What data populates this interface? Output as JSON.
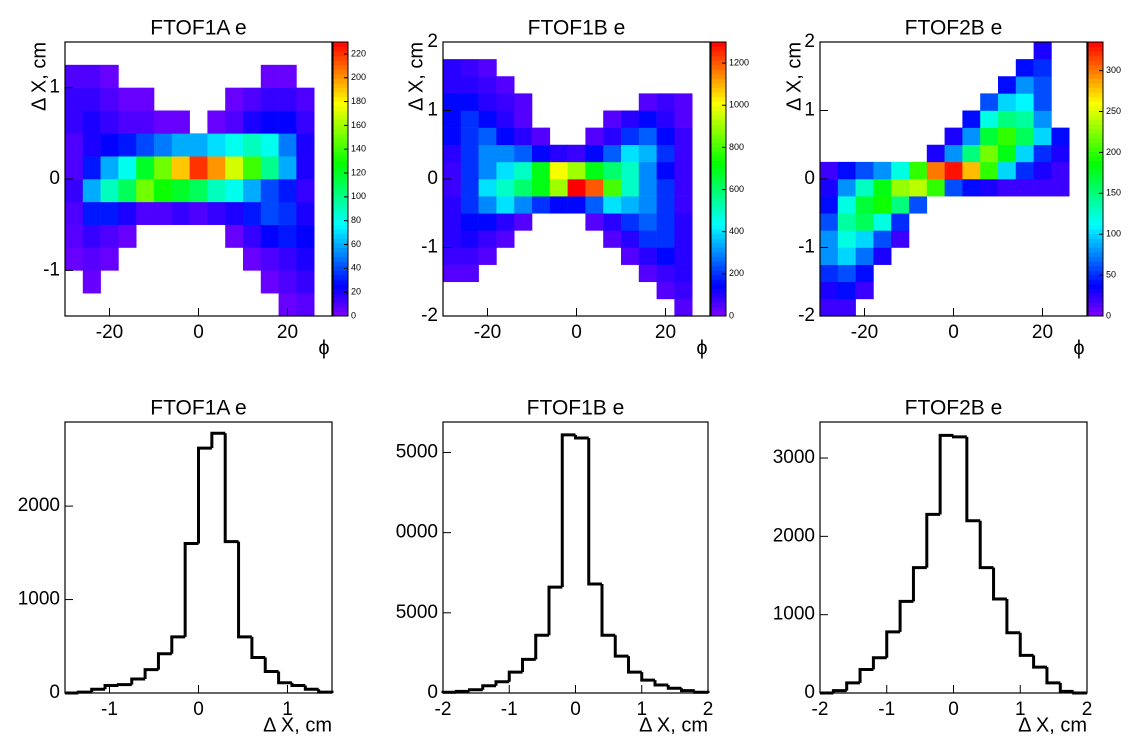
{
  "chart_data": [
    {
      "type": "heatmap",
      "title": "FTOF1A e",
      "x_label": "ϕ",
      "y_label": "Δ X, cm",
      "xlim": [
        -30,
        30
      ],
      "ylim": [
        -1.5,
        1.5
      ],
      "xticks": [
        -20,
        0,
        20
      ],
      "yticks": [
        -1,
        0,
        1
      ],
      "zlim": [
        0,
        230
      ],
      "zticks": [
        0,
        20,
        40,
        60,
        80,
        100,
        120,
        140,
        160,
        180,
        200,
        220
      ],
      "xbins": [
        -30,
        -26,
        -22,
        -18,
        -14,
        -10,
        -6,
        -2,
        2,
        6,
        10,
        14,
        18,
        22,
        26,
        30
      ],
      "ybins": [
        -1.5,
        -1.25,
        -1,
        -0.75,
        -0.5,
        -0.25,
        0,
        0.25,
        0.5,
        0.75,
        1,
        1.25,
        1.5
      ],
      "z": [
        [
          null,
          null,
          null,
          null,
          null,
          null,
          null,
          null,
          null,
          null,
          null,
          null,
          5,
          8,
          null
        ],
        [
          null,
          5,
          null,
          null,
          null,
          null,
          null,
          null,
          null,
          null,
          null,
          5,
          10,
          15,
          null
        ],
        [
          5,
          8,
          5,
          null,
          null,
          null,
          null,
          null,
          null,
          null,
          5,
          10,
          15,
          20,
          null
        ],
        [
          8,
          15,
          10,
          5,
          null,
          null,
          null,
          null,
          null,
          5,
          15,
          25,
          30,
          25,
          null
        ],
        [
          10,
          30,
          30,
          20,
          10,
          10,
          15,
          10,
          15,
          20,
          30,
          40,
          35,
          20,
          null
        ],
        [
          15,
          60,
          90,
          110,
          150,
          130,
          120,
          110,
          90,
          80,
          60,
          40,
          30,
          15,
          null
        ],
        [
          10,
          30,
          60,
          80,
          120,
          150,
          190,
          220,
          200,
          170,
          140,
          100,
          60,
          20,
          null
        ],
        [
          10,
          20,
          25,
          30,
          40,
          50,
          60,
          60,
          70,
          80,
          90,
          80,
          50,
          20,
          null
        ],
        [
          15,
          20,
          15,
          10,
          10,
          5,
          5,
          null,
          5,
          10,
          20,
          25,
          25,
          15,
          null
        ],
        [
          15,
          15,
          10,
          5,
          5,
          null,
          null,
          null,
          null,
          5,
          10,
          15,
          15,
          10,
          null
        ],
        [
          10,
          10,
          5,
          null,
          null,
          null,
          null,
          null,
          null,
          null,
          null,
          5,
          5,
          null,
          null
        ],
        [
          null,
          null,
          null,
          null,
          null,
          null,
          null,
          null,
          null,
          null,
          null,
          null,
          null,
          null,
          null
        ]
      ]
    },
    {
      "type": "heatmap",
      "title": "FTOF1B e",
      "x_label": "ϕ",
      "y_label": "Δ X, cm",
      "xlim": [
        -30,
        30
      ],
      "ylim": [
        -2,
        2
      ],
      "xticks": [
        -20,
        0,
        20
      ],
      "yticks": [
        -2,
        -1,
        0,
        1,
        2
      ],
      "zlim": [
        0,
        1300
      ],
      "zticks": [
        0,
        200,
        400,
        600,
        800,
        1000,
        1200
      ],
      "xbins": [
        -30,
        -26,
        -22,
        -18,
        -14,
        -10,
        -6,
        -2,
        2,
        6,
        10,
        14,
        18,
        22,
        26,
        30
      ],
      "ybins": [
        -2,
        -1.75,
        -1.5,
        -1.25,
        -1,
        -0.75,
        -0.5,
        -0.25,
        0,
        0.25,
        0.5,
        0.75,
        1,
        1.25,
        1.5,
        1.75,
        2
      ],
      "z": [
        [
          null,
          null,
          null,
          null,
          null,
          null,
          null,
          null,
          null,
          null,
          null,
          null,
          null,
          50,
          null
        ],
        [
          null,
          null,
          null,
          null,
          null,
          null,
          null,
          null,
          null,
          null,
          null,
          null,
          50,
          80,
          null
        ],
        [
          50,
          50,
          null,
          null,
          null,
          null,
          null,
          null,
          null,
          null,
          null,
          50,
          80,
          100,
          null
        ],
        [
          80,
          80,
          50,
          null,
          null,
          null,
          null,
          null,
          null,
          null,
          50,
          100,
          150,
          100,
          null
        ],
        [
          100,
          120,
          80,
          50,
          null,
          null,
          null,
          null,
          null,
          50,
          100,
          200,
          200,
          100,
          null
        ],
        [
          100,
          150,
          150,
          100,
          50,
          null,
          null,
          null,
          50,
          100,
          200,
          250,
          200,
          100,
          null
        ],
        [
          100,
          200,
          300,
          400,
          300,
          200,
          150,
          150,
          250,
          400,
          350,
          300,
          200,
          80,
          null
        ],
        [
          80,
          200,
          400,
          500,
          600,
          700,
          900,
          1300,
          1200,
          800,
          500,
          300,
          200,
          80,
          null
        ],
        [
          80,
          200,
          300,
          400,
          500,
          700,
          1000,
          900,
          700,
          600,
          500,
          300,
          150,
          80,
          null
        ],
        [
          100,
          200,
          300,
          300,
          250,
          150,
          100,
          80,
          150,
          250,
          400,
          350,
          200,
          80,
          null
        ],
        [
          150,
          200,
          250,
          150,
          100,
          50,
          null,
          null,
          50,
          100,
          200,
          250,
          150,
          80,
          null
        ],
        [
          150,
          200,
          150,
          100,
          50,
          null,
          null,
          null,
          null,
          50,
          100,
          150,
          100,
          50,
          null
        ],
        [
          150,
          150,
          100,
          80,
          50,
          null,
          null,
          null,
          null,
          null,
          null,
          50,
          80,
          50,
          null
        ],
        [
          100,
          100,
          80,
          50,
          null,
          null,
          null,
          null,
          null,
          null,
          null,
          null,
          null,
          null,
          null
        ],
        [
          100,
          80,
          50,
          null,
          null,
          null,
          null,
          null,
          null,
          null,
          null,
          null,
          null,
          null,
          null
        ],
        [
          null,
          null,
          null,
          null,
          null,
          null,
          null,
          null,
          null,
          null,
          null,
          null,
          null,
          null,
          null
        ]
      ]
    },
    {
      "type": "heatmap",
      "title": "FTOF2B e",
      "x_label": "ϕ",
      "y_label": "Δ X, cm",
      "xlim": [
        -30,
        30
      ],
      "ylim": [
        -2,
        2
      ],
      "xticks": [
        -20,
        0,
        20
      ],
      "yticks": [
        -2,
        -1,
        0,
        1,
        2
      ],
      "zlim": [
        0,
        335
      ],
      "zticks": [
        0,
        50,
        100,
        150,
        200,
        250,
        300
      ],
      "xbins": [
        -30,
        -26,
        -22,
        -18,
        -14,
        -10,
        -6,
        -2,
        2,
        6,
        10,
        14,
        18,
        22,
        26,
        30
      ],
      "ybins": [
        -2,
        -1.75,
        -1.5,
        -1.25,
        -1,
        -0.75,
        -0.5,
        -0.25,
        0,
        0.25,
        0.5,
        0.75,
        1,
        1.25,
        1.5,
        1.75,
        2
      ],
      "z": [
        [
          20,
          20,
          null,
          null,
          null,
          null,
          null,
          null,
          null,
          null,
          null,
          null,
          null,
          null,
          null
        ],
        [
          30,
          40,
          20,
          null,
          null,
          null,
          null,
          null,
          null,
          null,
          null,
          null,
          null,
          null,
          null
        ],
        [
          50,
          60,
          40,
          null,
          null,
          null,
          null,
          null,
          null,
          null,
          null,
          null,
          null,
          null,
          null
        ],
        [
          80,
          100,
          70,
          30,
          null,
          null,
          null,
          null,
          null,
          null,
          null,
          null,
          null,
          null,
          null
        ],
        [
          80,
          120,
          100,
          60,
          20,
          null,
          null,
          null,
          null,
          null,
          null,
          null,
          null,
          null,
          null
        ],
        [
          60,
          140,
          160,
          120,
          50,
          null,
          null,
          null,
          null,
          null,
          null,
          null,
          null,
          null,
          null
        ],
        [
          40,
          120,
          170,
          190,
          150,
          60,
          null,
          null,
          null,
          null,
          null,
          null,
          null,
          null,
          null
        ],
        [
          30,
          80,
          130,
          180,
          230,
          240,
          200,
          60,
          40,
          30,
          20,
          20,
          20,
          20,
          null
        ],
        [
          20,
          40,
          60,
          80,
          120,
          200,
          300,
          330,
          280,
          200,
          100,
          50,
          30,
          20,
          null
        ],
        [
          null,
          null,
          null,
          null,
          null,
          null,
          30,
          80,
          150,
          220,
          180,
          100,
          50,
          30,
          null
        ],
        [
          null,
          null,
          null,
          null,
          null,
          null,
          null,
          30,
          80,
          170,
          200,
          160,
          100,
          40,
          null
        ],
        [
          null,
          null,
          null,
          null,
          null,
          null,
          null,
          null,
          40,
          120,
          150,
          140,
          80,
          null,
          null
        ],
        [
          null,
          null,
          null,
          null,
          null,
          null,
          null,
          null,
          null,
          60,
          100,
          110,
          60,
          null,
          null
        ],
        [
          null,
          null,
          null,
          null,
          null,
          null,
          null,
          null,
          null,
          null,
          40,
          80,
          60,
          null,
          null
        ],
        [
          null,
          null,
          null,
          null,
          null,
          null,
          null,
          null,
          null,
          null,
          null,
          40,
          50,
          null,
          null
        ],
        [
          null,
          null,
          null,
          null,
          null,
          null,
          null,
          null,
          null,
          null,
          null,
          null,
          30,
          null,
          null
        ]
      ]
    },
    {
      "type": "histogram",
      "title": "FTOF1A e",
      "x_label": "Δ X, cm",
      "xlim": [
        -1.5,
        1.5
      ],
      "ylim": [
        0,
        2900
      ],
      "xticks": [
        -1,
        0,
        1
      ],
      "yticks": [
        0,
        1000,
        2000
      ],
      "bins": [
        -1.5,
        -1.35,
        -1.2,
        -1.05,
        -0.9,
        -0.75,
        -0.6,
        -0.45,
        -0.3,
        -0.15,
        0,
        0.15,
        0.3,
        0.45,
        0.6,
        0.75,
        0.9,
        1.05,
        1.2,
        1.35,
        1.5
      ],
      "values": [
        0,
        10,
        40,
        80,
        90,
        150,
        250,
        420,
        600,
        1600,
        2620,
        2780,
        1620,
        600,
        380,
        230,
        110,
        80,
        40,
        10
      ]
    },
    {
      "type": "histogram",
      "title": "FTOF1B e",
      "x_label": "Δ X, cm",
      "xlim": [
        -2,
        2
      ],
      "ylim": [
        0,
        16900
      ],
      "xticks": [
        -2,
        -1,
        0,
        1,
        2
      ],
      "yticks": [
        0,
        5000,
        {
          "value": 10000,
          "label": "0000"
        },
        {
          "value": 15000,
          "label": "5000"
        }
      ],
      "bins": [
        -2,
        -1.8,
        -1.6,
        -1.4,
        -1.2,
        -1,
        -0.8,
        -0.6,
        -0.4,
        -0.2,
        0,
        0.2,
        0.4,
        0.6,
        0.8,
        1,
        1.2,
        1.4,
        1.6,
        1.8,
        2
      ],
      "values": [
        50,
        100,
        200,
        450,
        700,
        1300,
        2100,
        3600,
        6600,
        16100,
        15900,
        6800,
        3600,
        2300,
        1300,
        800,
        500,
        300,
        150,
        50
      ]
    },
    {
      "type": "histogram",
      "title": "FTOF2B e",
      "x_label": "Δ X, cm",
      "xlim": [
        -2,
        2
      ],
      "ylim": [
        0,
        3460
      ],
      "xticks": [
        -2,
        -1,
        0,
        1,
        2
      ],
      "yticks": [
        0,
        1000,
        2000,
        3000
      ],
      "bins": [
        -2,
        -1.8,
        -1.6,
        -1.4,
        -1.2,
        -1,
        -0.8,
        -0.6,
        -0.4,
        -0.2,
        0,
        0.2,
        0.4,
        0.6,
        0.8,
        1,
        1.2,
        1.4,
        1.6,
        1.8,
        2
      ],
      "values": [
        0,
        30,
        130,
        300,
        450,
        780,
        1170,
        1600,
        2280,
        3290,
        3270,
        2200,
        1600,
        1200,
        770,
        480,
        330,
        130,
        20,
        0
      ]
    }
  ]
}
